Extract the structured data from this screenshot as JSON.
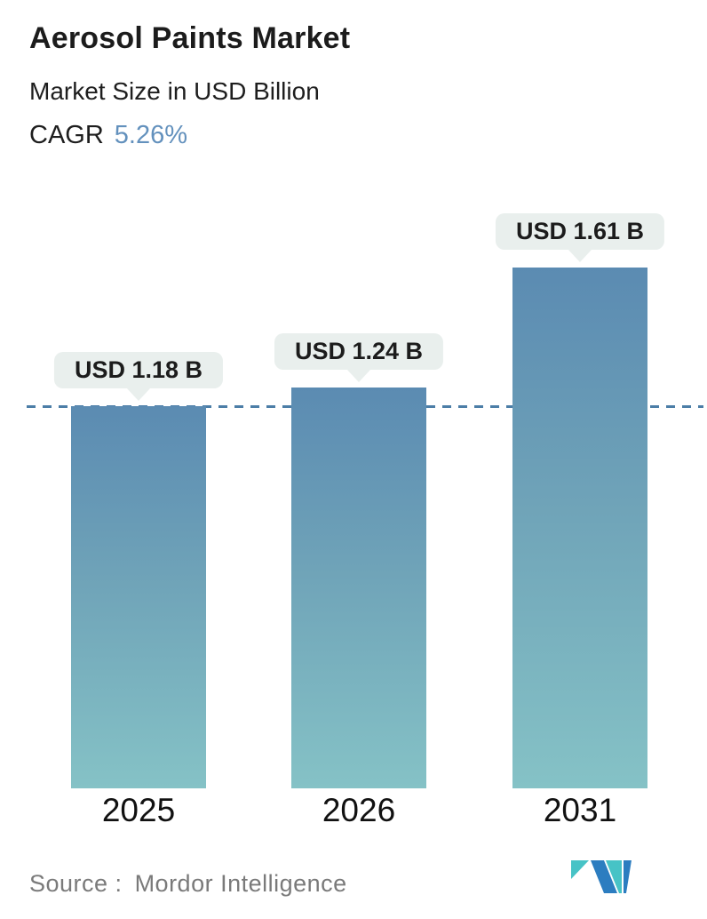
{
  "header": {
    "title": "Aerosol Paints Market",
    "subtitle": "Market Size in USD Billion",
    "cagr_label": "CAGR",
    "cagr_value": "5.26%"
  },
  "chart_data": {
    "type": "bar",
    "title": "Aerosol Paints Market",
    "subtitle": "Market Size in USD Billion",
    "unit": "USD Billion",
    "categories": [
      "2025",
      "2026",
      "2031"
    ],
    "values": [
      1.18,
      1.24,
      1.61
    ],
    "value_labels": [
      "USD 1.18 B",
      "USD 1.24 B",
      "USD 1.61 B"
    ],
    "cagr_percent": 5.26,
    "ylim": [
      0,
      1.8
    ],
    "grid": false,
    "legend": "none",
    "baseline": {
      "style": "dashed",
      "at_value": 1.18,
      "color": "#4c7ea7"
    },
    "bar_colors": {
      "gradient_top": "#5b8bb2",
      "gradient_bottom": "#85c2c6"
    },
    "label_bubble_color": "#e9efed"
  },
  "footer": {
    "source_label": "Source :",
    "source_value": "Mordor Intelligence",
    "logo_name": "mordor-intelligence-logo"
  },
  "colors": {
    "accent_blue_text": "#6391bd",
    "text_dark": "#1c1c1c",
    "text_gray": "#7a7a7a",
    "logo_teal": "#47c3c6",
    "logo_blue": "#2c7dc0"
  }
}
